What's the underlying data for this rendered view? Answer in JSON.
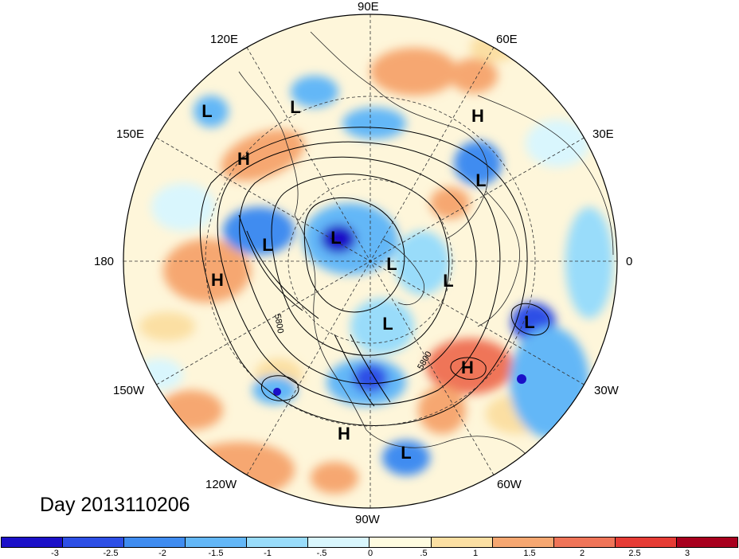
{
  "map": {
    "title": "Day 2013110206",
    "longitude_labels": [
      "90E",
      "60E",
      "30E",
      "0",
      "30W",
      "60W",
      "90W",
      "120W",
      "150W",
      "180",
      "150E",
      "120E"
    ],
    "pressure_systems": [
      {
        "label": "L",
        "name": "east-asia-low"
      },
      {
        "label": "L",
        "name": "kamchatka-low"
      },
      {
        "label": "H",
        "name": "siberia-high"
      },
      {
        "label": "L",
        "name": "scandinavia-low"
      },
      {
        "label": "H",
        "name": "pacific-high-west"
      },
      {
        "label": "L",
        "name": "aleutian-low"
      },
      {
        "label": "L",
        "name": "pole-low"
      },
      {
        "label": "L",
        "name": "arctic-low-1"
      },
      {
        "label": "L",
        "name": "greenland-low"
      },
      {
        "label": "H",
        "name": "pacific-high"
      },
      {
        "label": "L",
        "name": "canada-low"
      },
      {
        "label": "L",
        "name": "atlantic-east-low"
      },
      {
        "label": "H",
        "name": "atlantic-high"
      },
      {
        "label": "H",
        "name": "mexico-high"
      },
      {
        "label": "L",
        "name": "caribbean-low"
      }
    ],
    "contour_labels": [
      "5800",
      "5800"
    ],
    "colors": {
      "neg3": "#1b10c8",
      "neg25": "#2d4fe6",
      "neg2": "#3f8cf0",
      "neg15": "#63b7f7",
      "neg1": "#99dcfa",
      "neg05": "#d9f6fd",
      "pos05": "#fefbe0",
      "pos1": "#fbdfa3",
      "pos15": "#f6a771",
      "pos2": "#ef7458",
      "pos25": "#e63c35",
      "pos3": "#a8001e"
    }
  },
  "colorbar": {
    "ticks": [
      "-3",
      "-2.5",
      "-2",
      "-1.5",
      "-1",
      "-.5",
      "0",
      ".5",
      "1",
      "1.5",
      "2",
      "2.5",
      "3"
    ],
    "colors": [
      "#1b10c8",
      "#2d4fe6",
      "#3f8cf0",
      "#63b7f7",
      "#99dcfa",
      "#d9f6fd",
      "#fefbe0",
      "#fbdfa3",
      "#f6a771",
      "#ef7458",
      "#e63c35",
      "#a8001e"
    ]
  }
}
